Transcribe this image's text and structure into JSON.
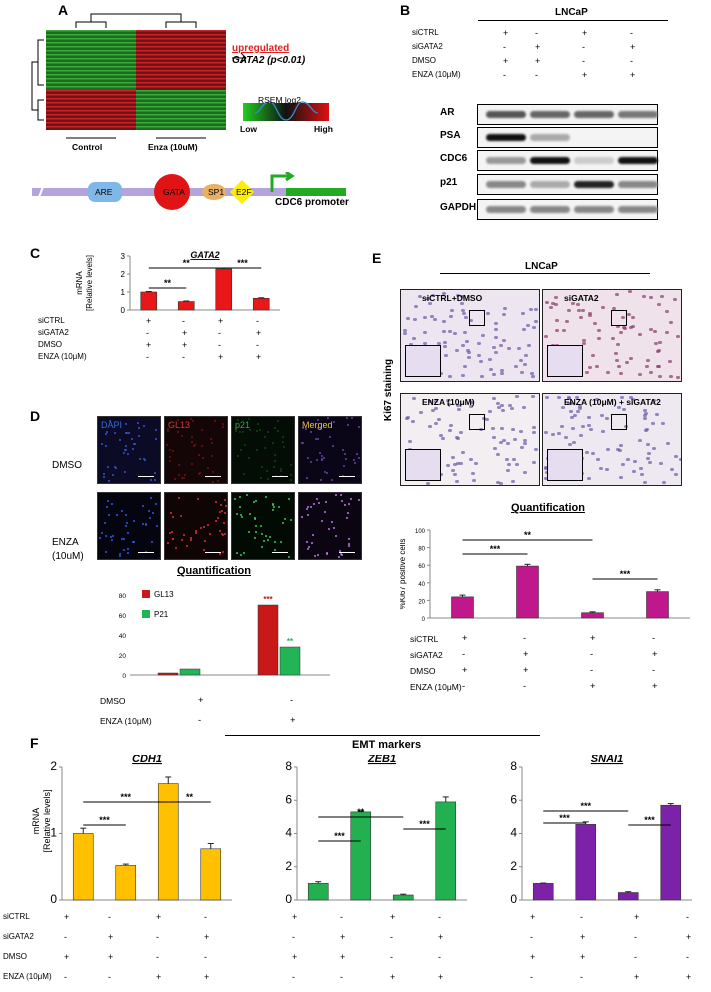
{
  "panels": {
    "a": "A",
    "b": "B",
    "c": "C",
    "d": "D",
    "e": "E",
    "f": "F"
  },
  "panel_a": {
    "upregulated": "upregulated",
    "gene_note": "GATA2 (p<0.01)",
    "scale_title": "RSEM log2",
    "scale_low": "Low",
    "scale_high": "High",
    "group_control": "Control",
    "group_enza": "Enza (10uM)",
    "promoter_elements": [
      "ARE",
      "GATA",
      "SP1",
      "E2F"
    ],
    "promoter_label": "CDC6 promoter",
    "colors": {
      "green": "#1f8a1f",
      "red": "#c8141e",
      "promoter_bar": "#b4a4dc",
      "promoter_line": "#22aa22"
    }
  },
  "panel_b": {
    "title": "LNCaP",
    "rows": [
      {
        "label": "siCTRL",
        "values": [
          "+",
          "-",
          "+",
          "-"
        ]
      },
      {
        "label": "siGATA2",
        "values": [
          "-",
          "+",
          "-",
          "+"
        ]
      },
      {
        "label": "DMSO",
        "values": [
          "+",
          "+",
          "-",
          "-"
        ]
      },
      {
        "label": "ENZA (10μM)",
        "values": [
          "-",
          "-",
          "+",
          "+"
        ]
      }
    ],
    "blots": [
      "AR",
      "PSA",
      "CDC6",
      "p21",
      "GAPDH"
    ]
  },
  "panel_c": {
    "title": "GATA2",
    "ylabel": "mRNA\n[Relative levels]",
    "significance": [
      "**",
      "**",
      "***"
    ],
    "rows": [
      {
        "label": "siCTRL",
        "values": [
          "+",
          "-",
          "+",
          "-"
        ]
      },
      {
        "label": "siGATA2",
        "values": [
          "-",
          "+",
          "-",
          "+"
        ]
      },
      {
        "label": "DMSO",
        "values": [
          "+",
          "+",
          "-",
          "-"
        ]
      },
      {
        "label": "ENZA (10μM)",
        "values": [
          "-",
          "-",
          "+",
          "+"
        ]
      }
    ]
  },
  "panel_d": {
    "channels": [
      "DAPI",
      "GL13",
      "p21",
      "Merged"
    ],
    "channel_colors": [
      "#3a6bd8",
      "#d23a3a",
      "#2ea84a",
      "#e8c33a"
    ],
    "row_dmso": "DMSO",
    "row_enza": "ENZA\n(10uM)",
    "quant_title": "Quantification",
    "legend": [
      "GL13",
      "P21"
    ],
    "significance_gl13": "***",
    "significance_p21": "**",
    "rows": [
      {
        "label": "DMSO",
        "values": [
          "+",
          "-"
        ]
      },
      {
        "label": "ENZA (10μM)",
        "values": [
          "-",
          "+"
        ]
      }
    ]
  },
  "panel_e": {
    "title": "LNCaP",
    "ylabel_stain": "Ki67 staining",
    "image_labels": [
      "siCTRL+DMSO",
      "siGATA2",
      "ENZA (10μM)",
      "ENZA (10μM) + siGATA2"
    ],
    "quant_title": "Quantification",
    "ylabel": "%Ki67 positive cells",
    "significance": [
      "***",
      "**",
      "***"
    ],
    "rows": [
      {
        "label": "siCTRL",
        "values": [
          "+",
          "-",
          "+",
          "-"
        ]
      },
      {
        "label": "siGATA2",
        "values": [
          "-",
          "+",
          "-",
          "+"
        ]
      },
      {
        "label": "DMSO",
        "values": [
          "+",
          "+",
          "-",
          "-"
        ]
      },
      {
        "label": "ENZA (10μM)",
        "values": [
          "-",
          "-",
          "+",
          "+"
        ]
      }
    ]
  },
  "panel_f": {
    "header": "EMT markers",
    "ylabel": "mRNA\n[Relative levels]",
    "charts": [
      {
        "title": "CDH1",
        "significance": [
          "***",
          "***",
          "**"
        ]
      },
      {
        "title": "ZEB1",
        "significance": [
          "***",
          "**",
          "***"
        ]
      },
      {
        "title": "SNAI1",
        "significance": [
          "***",
          "***",
          "***"
        ]
      }
    ],
    "rows": [
      {
        "label": "siCTRL",
        "values": [
          "+",
          "-",
          "+",
          "-"
        ]
      },
      {
        "label": "siGATA2",
        "values": [
          "-",
          "+",
          "-",
          "+"
        ]
      },
      {
        "label": "DMSO",
        "values": [
          "+",
          "+",
          "-",
          "-"
        ]
      },
      {
        "label": "ENZA (10μM)",
        "values": [
          "-",
          "-",
          "+",
          "+"
        ]
      }
    ]
  },
  "chart_data": [
    {
      "id": "gata2",
      "type": "bar",
      "title": "GATA2",
      "categories": [
        "siCTRL+DMSO",
        "siGATA2+DMSO",
        "siCTRL+ENZA",
        "siGATA2+ENZA"
      ],
      "values": [
        1.0,
        0.47,
        2.28,
        0.65
      ],
      "errors": [
        0.03,
        0.03,
        0.05,
        0.03
      ],
      "ylim": [
        0,
        3
      ],
      "yticks": [
        0,
        1,
        2,
        3
      ],
      "color": "#e81818"
    },
    {
      "id": "gl13_p21",
      "type": "bar",
      "categories": [
        "DMSO",
        "ENZA"
      ],
      "series": [
        {
          "name": "GL13",
          "values": [
            2,
            70
          ],
          "color": "#c81818"
        },
        {
          "name": "P21",
          "values": [
            6,
            28
          ],
          "color": "#22b455"
        }
      ],
      "ylim": [
        0,
        80
      ],
      "yticks": [
        0,
        20,
        40,
        60,
        80
      ]
    },
    {
      "id": "ki67",
      "type": "bar",
      "categories": [
        "siCTRL+DMSO",
        "siGATA2+DMSO",
        "siCTRL+ENZA",
        "siGATA2+ENZA"
      ],
      "values": [
        24,
        59,
        6,
        30
      ],
      "errors": [
        2,
        2,
        1,
        2
      ],
      "ylim": [
        0,
        100
      ],
      "yticks": [
        0,
        20,
        40,
        60,
        80,
        100
      ],
      "ylabel": "%Ki67 positive cells",
      "color": "#c0188c"
    },
    {
      "id": "cdh1",
      "type": "bar",
      "title": "CDH1",
      "categories": [
        "siCTRL+DMSO",
        "siGATA2+DMSO",
        "siCTRL+ENZA",
        "siGATA2+ENZA"
      ],
      "values": [
        1.0,
        0.52,
        1.75,
        0.77
      ],
      "errors": [
        0.08,
        0.02,
        0.1,
        0.08
      ],
      "ylim": [
        0,
        2
      ],
      "yticks": [
        0,
        1,
        2
      ],
      "color": "#ffc000"
    },
    {
      "id": "zeb1",
      "type": "bar",
      "title": "ZEB1",
      "categories": [
        "siCTRL+DMSO",
        "siGATA2+DMSO",
        "siCTRL+ENZA",
        "siGATA2+ENZA"
      ],
      "values": [
        1.0,
        5.3,
        0.3,
        5.9
      ],
      "errors": [
        0.1,
        0.05,
        0.05,
        0.3
      ],
      "ylim": [
        0,
        8
      ],
      "yticks": [
        0,
        2,
        4,
        6,
        8
      ],
      "color": "#22b050"
    },
    {
      "id": "snai1",
      "type": "bar",
      "title": "SNAI1",
      "categories": [
        "siCTRL+DMSO",
        "siGATA2+DMSO",
        "siCTRL+ENZA",
        "siGATA2+ENZA"
      ],
      "values": [
        1.0,
        4.55,
        0.45,
        5.7
      ],
      "errors": [
        0.02,
        0.15,
        0.05,
        0.1
      ],
      "ylim": [
        0,
        8
      ],
      "yticks": [
        0,
        2,
        4,
        6,
        8
      ],
      "color": "#7b22a8"
    }
  ]
}
